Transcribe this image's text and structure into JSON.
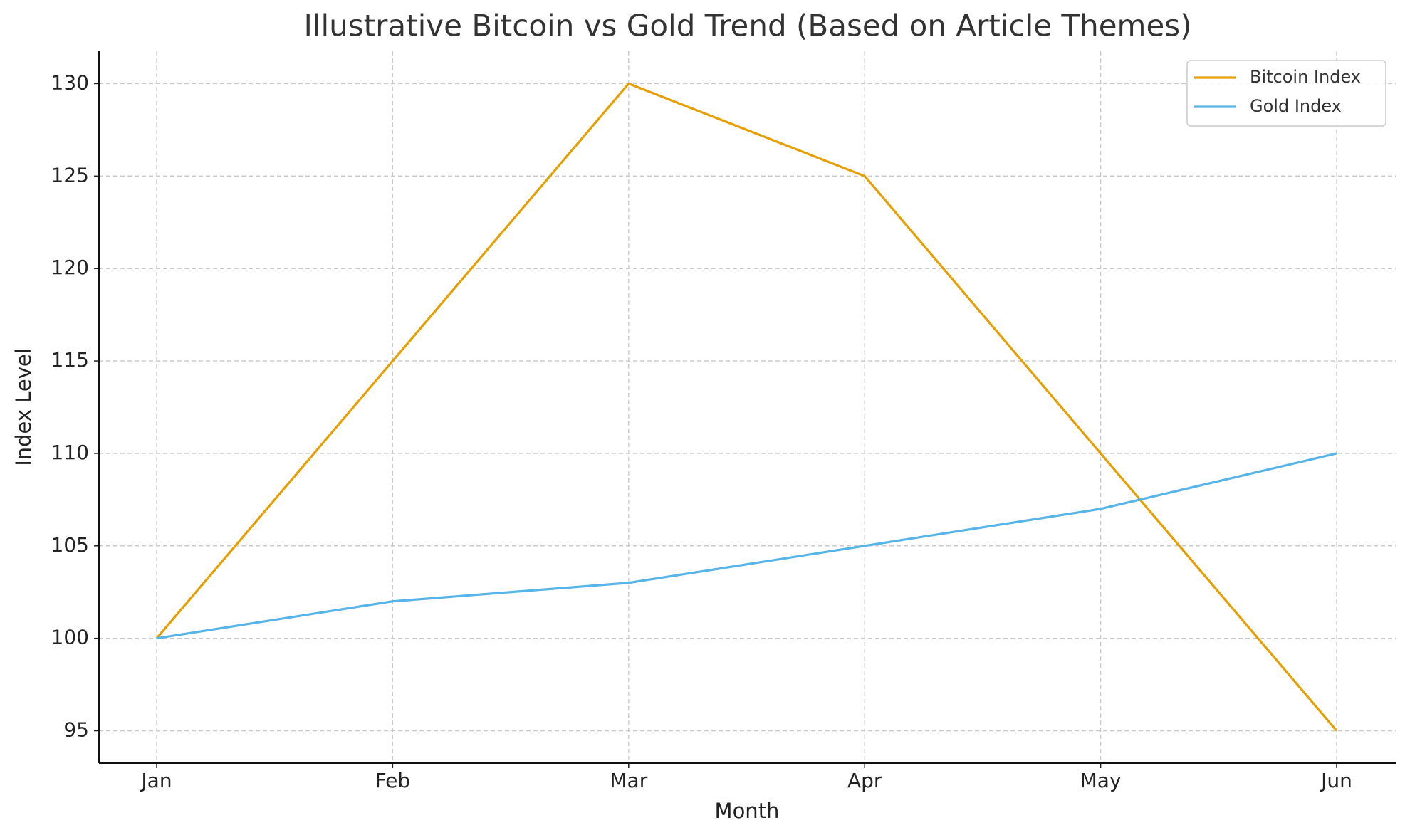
{
  "chart_data": {
    "type": "line",
    "title": "Illustrative Bitcoin vs Gold Trend (Based on Article Themes)",
    "x_label": "Month",
    "y_label": "Index Level",
    "categories": [
      "Jan",
      "Feb",
      "Mar",
      "Apr",
      "May",
      "Jun"
    ],
    "series": [
      {
        "name": "Bitcoin Index",
        "color": "#E69F00",
        "values": [
          100,
          115,
          130,
          125,
          110,
          95
        ]
      },
      {
        "name": "Gold Index",
        "color": "#56B4E9",
        "values": [
          100,
          102,
          103,
          105,
          107,
          110
        ]
      }
    ],
    "ylim": [
      93.25,
      131.75
    ],
    "yticks": [
      95,
      100,
      105,
      110,
      115,
      120,
      125,
      130
    ],
    "grid": true,
    "legend": "upper right"
  }
}
